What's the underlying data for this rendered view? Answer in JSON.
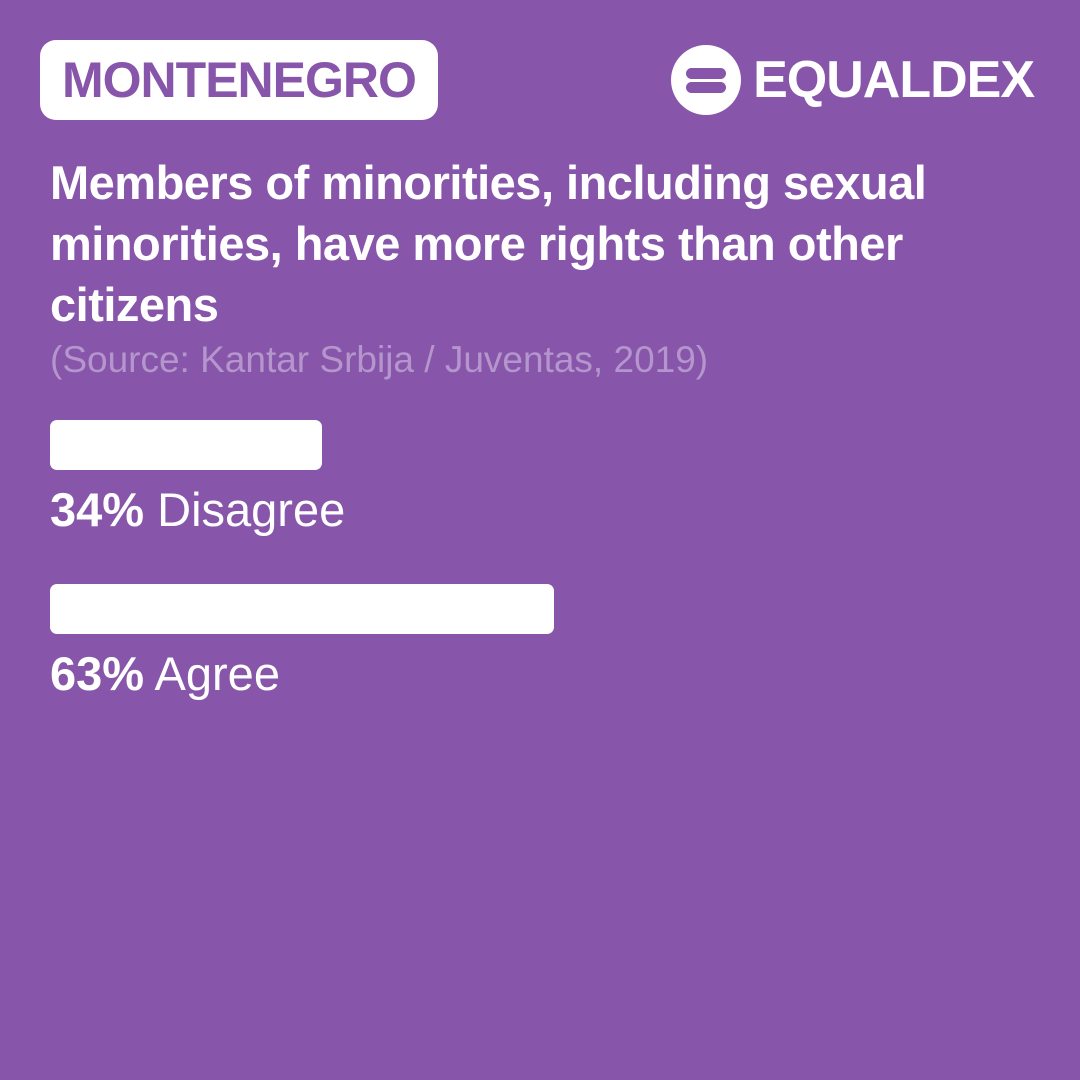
{
  "header": {
    "country": "MONTENEGRO",
    "brand": "EQUALDEX",
    "brand_logo_icon": "equaldex-logo-icon"
  },
  "colors": {
    "background": "#8755a9",
    "bar": "#ffffff",
    "source_text": "#b496cc"
  },
  "chart_data": {
    "type": "bar",
    "orientation": "horizontal",
    "title": "Members of minorities, including sexual minorities, have more rights than other citizens",
    "subtitle": "(Source: Kantar Srbija / Juventas, 2019)",
    "categories": [
      "Disagree",
      "Agree"
    ],
    "values": [
      34,
      63
    ],
    "value_labels": [
      "34%",
      "63%"
    ],
    "unit": "%",
    "xlim": [
      0,
      100
    ],
    "grid": false
  }
}
